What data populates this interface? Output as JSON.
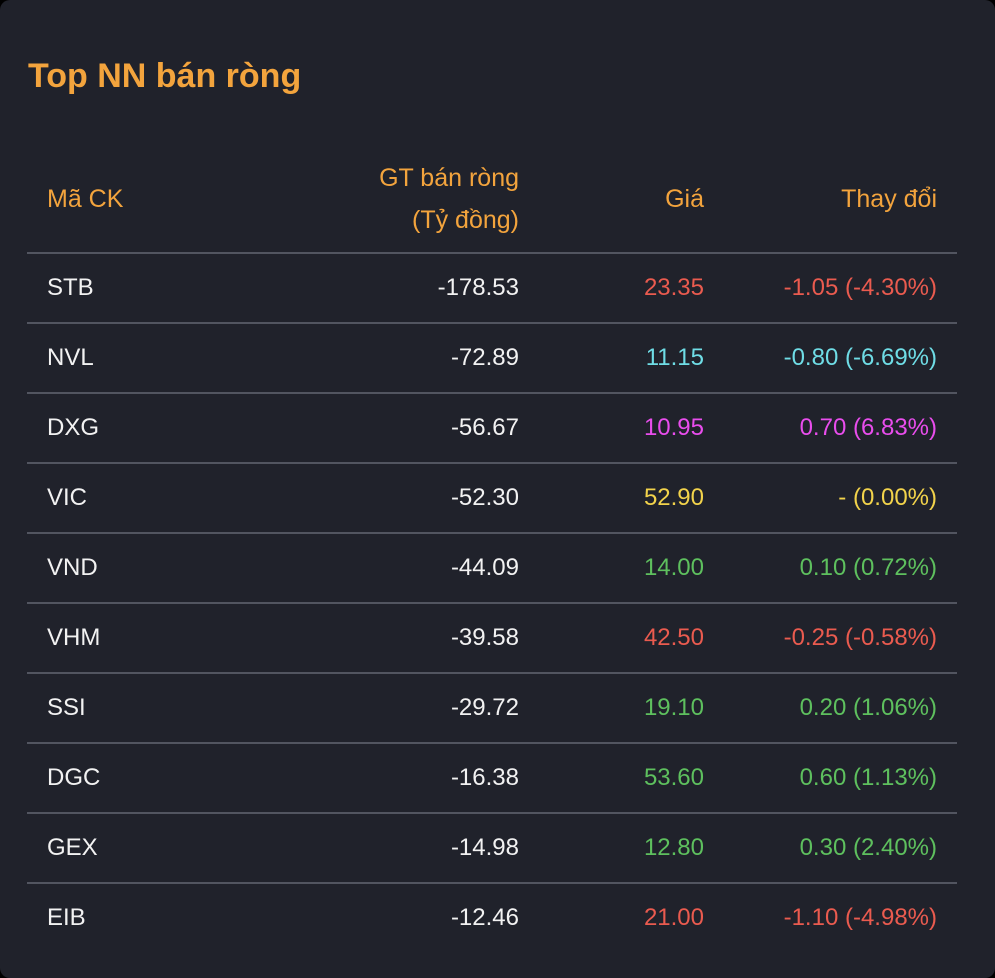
{
  "title": "Top NN bán ròng",
  "colors": {
    "accent": "#f3a43d",
    "down": "#ea5b4f",
    "floor": "#6fdde6",
    "ceiling": "#e94ded",
    "reference": "#f2d34b",
    "up": "#5ec05e",
    "text": "#f2f2f2"
  },
  "columns": {
    "code": "Mã CK",
    "value_line1": "GT bán ròng",
    "value_line2": "(Tỷ đồng)",
    "price": "Giá",
    "change": "Thay đổi"
  },
  "rows": [
    {
      "code": "STB",
      "value": "-178.53",
      "price": "23.35",
      "change": "-1.05 (-4.30%)",
      "color": "#ea5b4f"
    },
    {
      "code": "NVL",
      "value": "-72.89",
      "price": "11.15",
      "change": "-0.80 (-6.69%)",
      "color": "#6fdde6"
    },
    {
      "code": "DXG",
      "value": "-56.67",
      "price": "10.95",
      "change": "0.70 (6.83%)",
      "color": "#e94ded"
    },
    {
      "code": "VIC",
      "value": "-52.30",
      "price": "52.90",
      "change": "- (0.00%)",
      "color": "#f2d34b"
    },
    {
      "code": "VND",
      "value": "-44.09",
      "price": "14.00",
      "change": "0.10 (0.72%)",
      "color": "#5ec05e"
    },
    {
      "code": "VHM",
      "value": "-39.58",
      "price": "42.50",
      "change": "-0.25 (-0.58%)",
      "color": "#ea5b4f"
    },
    {
      "code": "SSI",
      "value": "-29.72",
      "price": "19.10",
      "change": "0.20 (1.06%)",
      "color": "#5ec05e"
    },
    {
      "code": "DGC",
      "value": "-16.38",
      "price": "53.60",
      "change": "0.60 (1.13%)",
      "color": "#5ec05e"
    },
    {
      "code": "GEX",
      "value": "-14.98",
      "price": "12.80",
      "change": "0.30 (2.40%)",
      "color": "#5ec05e"
    },
    {
      "code": "EIB",
      "value": "-12.46",
      "price": "21.00",
      "change": "-1.10 (-4.98%)",
      "color": "#ea5b4f"
    }
  ]
}
